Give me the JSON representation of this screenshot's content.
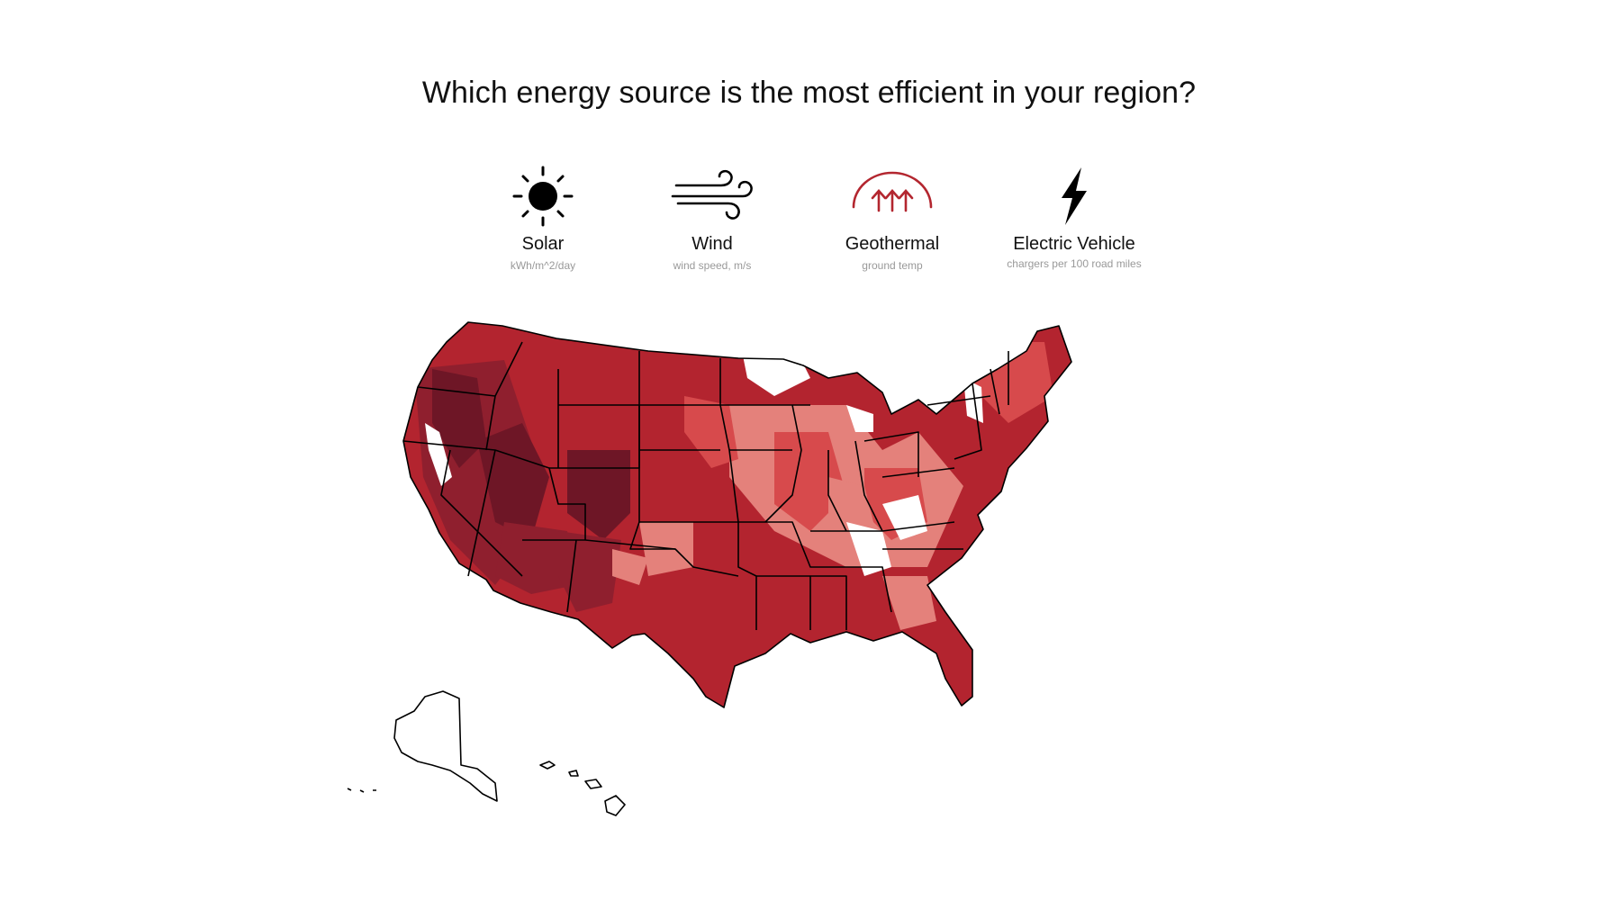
{
  "title": "Which energy source is the most efficient in your region?",
  "colors": {
    "darkest": "#6e1626",
    "dark": "#8f1f2e",
    "mid": "#b3242f",
    "light": "#d74a4c",
    "lighter": "#e4817b",
    "none": "#ffffff",
    "outline": "#000000",
    "geothermal_icon": "#b3262f"
  },
  "tabs": [
    {
      "label": "Solar",
      "unit": "kWh/m^2/day",
      "icon": "sun-icon"
    },
    {
      "label": "Wind",
      "unit": "wind speed, m/s",
      "icon": "wind-icon"
    },
    {
      "label": "Geothermal",
      "unit": "ground temp",
      "icon": "geothermal-icon"
    },
    {
      "label": "Electric Vehicle",
      "unit": "chargers per 100 road miles",
      "icon": "lightning-icon"
    }
  ]
}
